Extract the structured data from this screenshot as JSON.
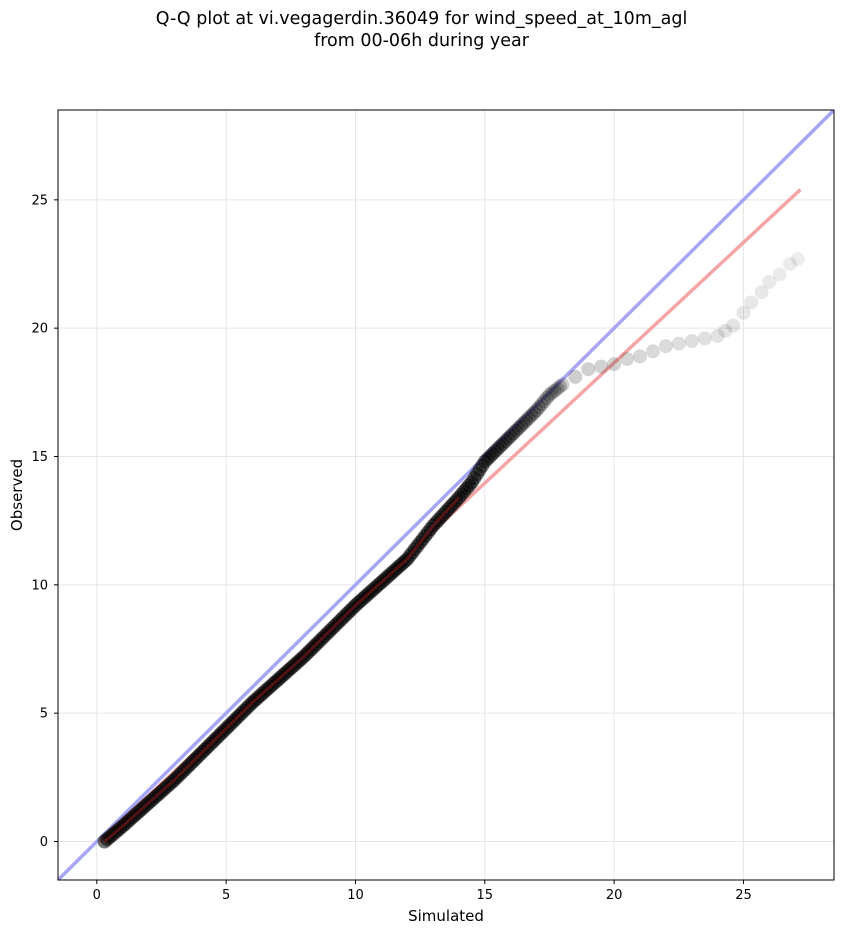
{
  "chart_data": {
    "type": "scatter",
    "title_line1": "Q-Q plot at vi.vegagerdin.36049 for wind_speed_at_10m_agl",
    "title_line2": "from 00-06h during year",
    "xlabel": "Simulated",
    "ylabel": "Observed",
    "xlim": [
      -1.5,
      28.5
    ],
    "ylim": [
      -1.5,
      28.5
    ],
    "xticks": [
      0,
      5,
      10,
      15,
      20,
      25
    ],
    "yticks": [
      0,
      5,
      10,
      15,
      20,
      25
    ],
    "grid": true,
    "colors": {
      "identity_line": "#a6a6f5",
      "fit_line": "#f5a5a5",
      "points": "#000000",
      "point_overlay": "#8b1a1a"
    },
    "identity_line": {
      "x": [
        -1.5,
        28.5
      ],
      "y": [
        -1.5,
        28.5
      ]
    },
    "fit_line": {
      "x": [
        0.1,
        27.2
      ],
      "y": [
        0.0,
        25.4
      ]
    },
    "quantile_curve": {
      "x": [
        0.3,
        1.0,
        2.0,
        3.0,
        4.0,
        5.0,
        6.0,
        7.0,
        8.0,
        9.0,
        10.0,
        11.0,
        12.0,
        13.0,
        14.0,
        14.5,
        15.0,
        15.5,
        16.0,
        16.5,
        17.0,
        17.5,
        18.0,
        18.5,
        19.0,
        19.5,
        20.0,
        20.5,
        21.0,
        21.5,
        22.0,
        22.5,
        23.0,
        23.5,
        24.0,
        24.3,
        24.6,
        25.0,
        25.3,
        25.7,
        26.0,
        26.4,
        26.8,
        27.1
      ],
      "y": [
        0.0,
        0.6,
        1.5,
        2.4,
        3.4,
        4.4,
        5.4,
        6.3,
        7.2,
        8.2,
        9.2,
        10.1,
        11.0,
        12.3,
        13.4,
        14.0,
        14.8,
        15.3,
        15.8,
        16.3,
        16.8,
        17.4,
        17.8,
        18.1,
        18.4,
        18.5,
        18.6,
        18.8,
        18.9,
        19.1,
        19.3,
        19.4,
        19.5,
        19.6,
        19.7,
        19.9,
        20.1,
        20.6,
        21.0,
        21.4,
        21.8,
        22.1,
        22.5,
        22.7
      ]
    }
  }
}
